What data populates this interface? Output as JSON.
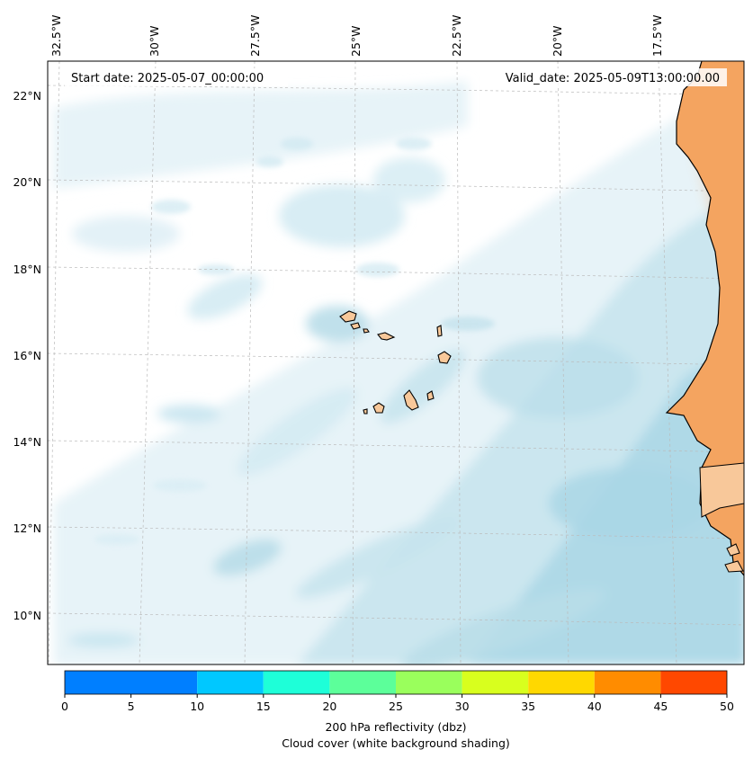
{
  "map": {
    "start_date_text": "Start date: 2025-05-07_00:00:00",
    "valid_date_text": "Valid_date: 2025-05-09T13:00:00.00",
    "lon_labels": [
      "32.5°W",
      "30°W",
      "27.5°W",
      "25°W",
      "22.5°W",
      "20°W",
      "17.5°W"
    ],
    "lat_labels": [
      "22°N",
      "20°N",
      "18°N",
      "16°N",
      "14°N",
      "12°N",
      "10°N"
    ],
    "colors": {
      "cloud_light": "#e4f2f7",
      "cloud_mid": "#c7e4ef",
      "cloud_dark": "#a9d6e6",
      "land": "#f4a460",
      "island": "#f8c89a",
      "coast": "#000000",
      "grid": "#bbbbbb"
    }
  },
  "colorbar": {
    "ticks": [
      "0",
      "5",
      "10",
      "15",
      "20",
      "25",
      "30",
      "35",
      "40",
      "45",
      "50"
    ],
    "bins": [
      {
        "from": 0,
        "to": 10,
        "color": "#007fff"
      },
      {
        "from": 10,
        "to": 15,
        "color": "#00c8ff"
      },
      {
        "from": 15,
        "to": 20,
        "color": "#1effd8"
      },
      {
        "from": 20,
        "to": 25,
        "color": "#5cff9a"
      },
      {
        "from": 25,
        "to": 30,
        "color": "#9aff5c"
      },
      {
        "from": 30,
        "to": 35,
        "color": "#d8ff1e"
      },
      {
        "from": 35,
        "to": 40,
        "color": "#ffd800"
      },
      {
        "from": 40,
        "to": 45,
        "color": "#ff8c00"
      },
      {
        "from": 45,
        "to": 50,
        "color": "#ff4800"
      }
    ],
    "label_line1": "200 hPa reflectivity (dbz)",
    "label_line2": "Cloud cover (white background shading)"
  }
}
